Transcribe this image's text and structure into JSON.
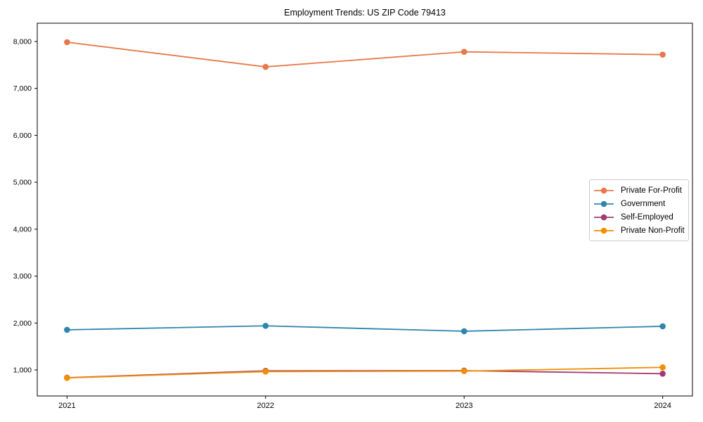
{
  "chart_data": {
    "type": "line",
    "title": "Employment Trends: US ZIP Code 79413",
    "x": [
      2021,
      2022,
      2023,
      2024
    ],
    "series": [
      {
        "name": "Private For-Profit",
        "color": "#E8784A",
        "values": [
          7985,
          7460,
          7780,
          7720
        ]
      },
      {
        "name": "Government",
        "color": "#2E86AB",
        "values": [
          1855,
          1940,
          1825,
          1930
        ]
      },
      {
        "name": "Self-Employed",
        "color": "#A23B72",
        "values": [
          835,
          980,
          985,
          920
        ]
      },
      {
        "name": "Private Non-Profit",
        "color": "#F18F01",
        "values": [
          830,
          965,
          975,
          1055
        ]
      }
    ],
    "xlabel": "",
    "ylabel": "",
    "xlim": [
      2020.85,
      2024.15
    ],
    "ylim": [
      445,
      8390
    ],
    "yticks": [
      1000,
      2000,
      3000,
      4000,
      5000,
      6000,
      7000,
      8000
    ],
    "xticks": [
      2021,
      2022,
      2023,
      2024
    ],
    "grid": false,
    "marker": "circle",
    "legend": {
      "position": "center-right",
      "border_color": "#cccccc",
      "background": "#ffffff"
    },
    "axis_color": "#000000",
    "plot_background": "#ffffff"
  }
}
